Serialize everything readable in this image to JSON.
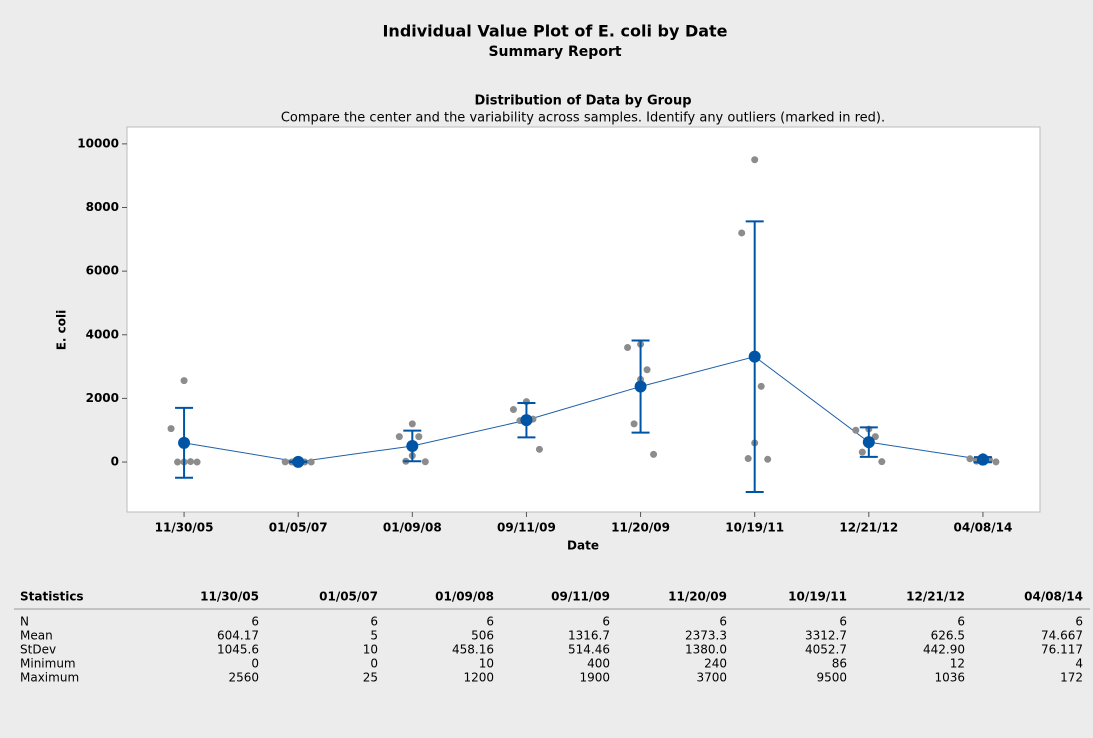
{
  "chart_data": {
    "type": "individual_value",
    "title": "Individual Value Plot of E. coli by Date",
    "subtitle": "Summary Report",
    "panel_title": "Distribution of Data by Group",
    "caption": "Compare the center and the variability across samples. Identify any outliers (marked in red).",
    "x_label": "Date",
    "y_label": "E. coli",
    "categories": [
      "11/30/05",
      "01/05/07",
      "01/09/08",
      "09/11/09",
      "11/20/09",
      "10/19/11",
      "12/21/12",
      "04/08/14"
    ],
    "points": [
      [
        0,
        0,
        0,
        15,
        1050,
        2560
      ],
      [
        0,
        0,
        0,
        0,
        5,
        25
      ],
      [
        10,
        26,
        200,
        800,
        800,
        1200
      ],
      [
        400,
        1300,
        1300,
        1350,
        1650,
        1900
      ],
      [
        240,
        1200,
        2600,
        2900,
        3600,
        3700
      ],
      [
        86,
        110,
        600,
        2380,
        7200,
        9500
      ],
      [
        12,
        311,
        600,
        800,
        1000,
        1036
      ],
      [
        4,
        30,
        60,
        80,
        102,
        172
      ]
    ],
    "point_color": "#8c8c8c",
    "means": [
      604.17,
      5,
      506,
      1316.7,
      2373.3,
      3312.7,
      626.5,
      74.667
    ],
    "ci_error": [
      1097.3,
      10.49,
      480.8,
      539.9,
      1448.2,
      4253.1,
      464.8,
      79.88
    ],
    "mean_color": "#0054a6",
    "ylim": [
      -1570,
      10530
    ],
    "yticks": [
      0,
      2000,
      4000,
      6000,
      8000,
      10000
    ],
    "statistics": {
      "header": "Statistics",
      "rows": [
        {
          "name": "N",
          "values": [
            "6",
            "6",
            "6",
            "6",
            "6",
            "6",
            "6",
            "6"
          ]
        },
        {
          "name": "Mean",
          "values": [
            "604.17",
            "5",
            "506",
            "1316.7",
            "2373.3",
            "3312.7",
            "626.5",
            "74.667"
          ]
        },
        {
          "name": "StDev",
          "values": [
            "1045.6",
            "10",
            "458.16",
            "514.46",
            "1380.0",
            "4052.7",
            "442.90",
            "76.117"
          ]
        },
        {
          "name": "Minimum",
          "values": [
            "0",
            "0",
            "10",
            "400",
            "240",
            "86",
            "12",
            "4"
          ]
        },
        {
          "name": "Maximum",
          "values": [
            "2560",
            "25",
            "1200",
            "1900",
            "3700",
            "9500",
            "1036",
            "172"
          ]
        }
      ]
    }
  }
}
